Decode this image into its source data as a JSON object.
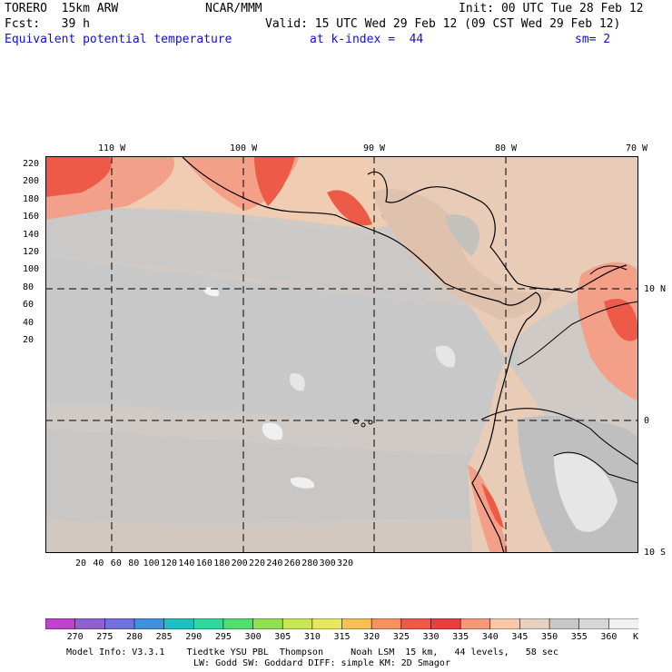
{
  "header": {
    "model": "TORERO  15km ARW",
    "center": "NCAR/MMM",
    "init": "Init: 00 UTC Tue 28 Feb 12",
    "fcst": "Fcst:   39 h",
    "valid": "Valid: 15 UTC Wed 29 Feb 12 (09 CST Wed 29 Feb 12)",
    "field": "Equivalent potential temperature",
    "level": "at k-index =  44",
    "smoothing": "sm= 2"
  },
  "map": {
    "top_lon_labels": [
      "110 W",
      "100 W",
      "90 W",
      "80 W",
      "70 W"
    ],
    "right_lat_labels": [
      "10 N",
      "0",
      "10 S"
    ],
    "left_y_ticks": [
      "220",
      "200",
      "180",
      "160",
      "140",
      "120",
      "100",
      "80",
      "60",
      "40",
      "20"
    ],
    "bottom_x_ticks": [
      "20",
      "40",
      "60",
      "80",
      "100",
      "120",
      "140",
      "160",
      "180",
      "200",
      "220",
      "240",
      "260",
      "280",
      "300",
      "320"
    ]
  },
  "colorbar": {
    "unit": "K",
    "levels": [
      "270",
      "275",
      "280",
      "285",
      "290",
      "295",
      "300",
      "305",
      "310",
      "315",
      "320",
      "325",
      "330",
      "335",
      "340",
      "345",
      "350",
      "355",
      "360"
    ],
    "colors": [
      "#c040d0",
      "#9060d0",
      "#7070e0",
      "#4090e0",
      "#20c0c0",
      "#30d8a0",
      "#50e070",
      "#90e050",
      "#c8e850",
      "#e8e860",
      "#f8c050",
      "#f89060",
      "#f05848",
      "#e84040",
      "#f89878",
      "#f8c8a8",
      "#e8d0c0",
      "#c8c8c8",
      "#d8d8d8",
      "#f0f0f0"
    ]
  },
  "footer": {
    "line1": "Model Info: V3.3.1    Tiedtke YSU PBL  Thompson     Noah LSM  15 km,   44 levels,   58 sec",
    "line2": "LW: Godd SW: Goddard DIFF: simple KM: 2D Smagor"
  }
}
